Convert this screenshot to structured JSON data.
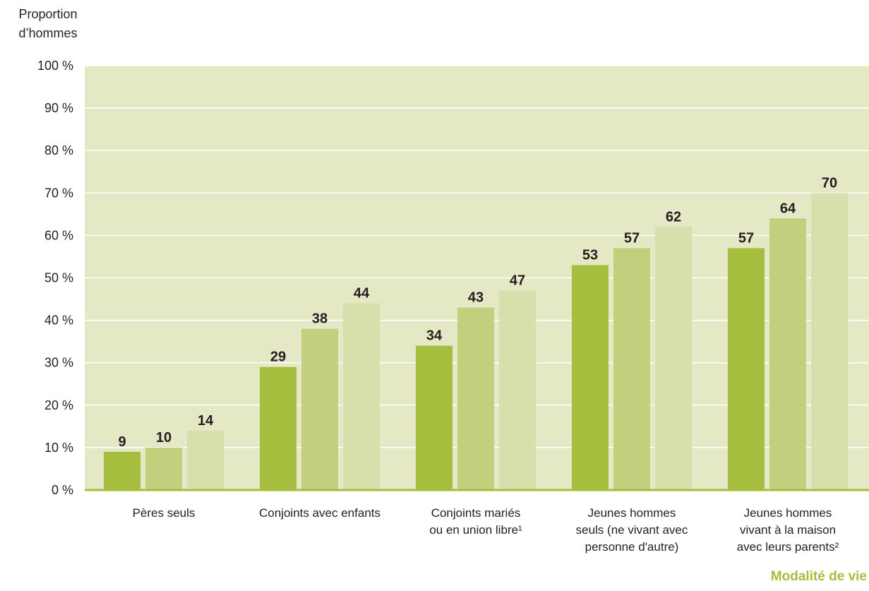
{
  "chart_data": {
    "type": "bar",
    "ylabel": "Proportion d’hommes",
    "xlabel": "Modalité de vie",
    "ylim": [
      0,
      100
    ],
    "yticks": [
      0,
      10,
      20,
      30,
      40,
      50,
      60,
      70,
      80,
      90,
      100
    ],
    "ytick_labels": [
      "0 %",
      "10 %",
      "20 %",
      "30 %",
      "40 %",
      "50 %",
      "60 %",
      "70 %",
      "80 %",
      "90 %",
      "100 %"
    ],
    "grid": true,
    "categories": [
      [
        "Pères seuls"
      ],
      [
        "Conjoints avec enfants"
      ],
      [
        "Conjoints mariés",
        "ou en union libre¹"
      ],
      [
        "Jeunes hommes",
        "seuls (ne vivant avec",
        "personne d'autre)"
      ],
      [
        "Jeunes hommes",
        "vivant à la maison",
        "avec leurs parents²"
      ]
    ],
    "series": [
      {
        "values": [
          9,
          29,
          34,
          53,
          57
        ],
        "color": "#a6be3d"
      },
      {
        "values": [
          10,
          38,
          43,
          57,
          64
        ],
        "color": "#c2cf7d"
      },
      {
        "values": [
          14,
          44,
          47,
          62,
          70
        ],
        "color": "#d8dfac"
      }
    ],
    "colors": {
      "plot_background": "#e4e8c5",
      "gridline": "#ffffff",
      "baseline": "#a6be3d",
      "xlabel": "#a6be3d",
      "text": "#231f20"
    }
  }
}
